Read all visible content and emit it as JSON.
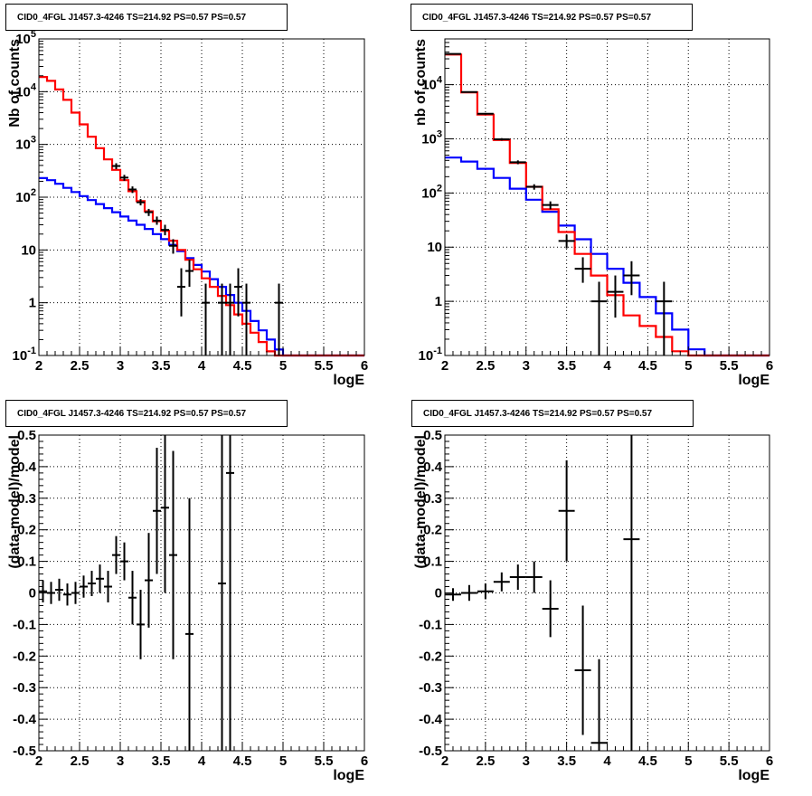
{
  "panels": [
    {
      "title": "CID0_4FGL J1457.3-4246 TS=214.92 PS=0.57 PS=0.57"
    },
    {
      "title": "CID0_4FGL J1457.3-4246 TS=214.92 PS=0.57 PS=0.57"
    },
    {
      "title": "CID0_4FGL J1457.3-4246 TS=214.92 PS=0.57 PS=0.57"
    },
    {
      "title": "CID0_4FGL J1457.3-4246 TS=214.92 PS=0.57 PS=0.57"
    }
  ],
  "colors": {
    "total_model": "#ff0000",
    "background_model": "#0000ff",
    "data": "#000000",
    "grid": "#000000"
  },
  "chart_data": [
    {
      "type": "line",
      "title": "CID0_4FGL J1457.3-4246 TS=214.92 PS=0.57 PS=0.57",
      "xlabel": "logE",
      "ylabel": "Nb of counts",
      "xlim": [
        2,
        6
      ],
      "ylim": [
        0.1,
        100000
      ],
      "yscale": "log",
      "grid": true,
      "x_ticks": [
        "2",
        "2.5",
        "3",
        "3.5",
        "4",
        "4.5",
        "5",
        "5.5",
        "6"
      ],
      "y_ticks": [
        "10^-1",
        "1",
        "10",
        "10^2",
        "10^3",
        "10^4",
        "10^5"
      ],
      "bin_width": 0.1,
      "bin_low_edges": [
        2.0,
        2.1,
        2.2,
        2.3,
        2.4,
        2.5,
        2.6,
        2.7,
        2.8,
        2.9,
        3.0,
        3.1,
        3.2,
        3.3,
        3.4,
        3.5,
        3.6,
        3.7,
        3.8,
        3.9,
        4.0,
        4.1,
        4.2,
        4.3,
        4.4,
        4.5,
        4.6,
        4.7,
        4.8,
        4.9,
        5.0,
        5.1,
        5.2,
        5.3,
        5.4,
        5.5,
        5.6,
        5.7,
        5.8,
        5.9
      ],
      "series": [
        {
          "values": [
            19000,
            16000,
            11000,
            7000,
            4000,
            2400,
            1400,
            850,
            520,
            330,
            210,
            130,
            84,
            54,
            35,
            23,
            15,
            10,
            6.5,
            4.3,
            2.9,
            2.0,
            1.35,
            0.9,
            0.6,
            0.4,
            0.27,
            0.18,
            0.12,
            0.1,
            0.1,
            0.1,
            0.1,
            0.1,
            0.1,
            0.1,
            0.1,
            0.1,
            0.1,
            0.1
          ]
        },
        {
          "values": [
            230,
            210,
            180,
            150,
            125,
            105,
            88,
            74,
            62,
            52,
            43,
            36,
            30,
            25,
            20,
            16,
            12.5,
            9.5,
            7,
            5.2,
            3.9,
            2.8,
            2.0,
            1.4,
            1.0,
            0.7,
            0.45,
            0.3,
            0.2,
            0.13,
            0.1,
            0.1,
            0.1,
            0.1,
            0.1,
            0.1,
            0.1,
            0.1,
            0.1,
            0.1
          ]
        }
      ],
      "data_points": [
        {
          "x": 2.95,
          "y": 390,
          "lo": 340,
          "hi": 440
        },
        {
          "x": 3.05,
          "y": 235,
          "lo": 205,
          "hi": 265
        },
        {
          "x": 3.15,
          "y": 140,
          "lo": 120,
          "hi": 160
        },
        {
          "x": 3.25,
          "y": 80,
          "lo": 70,
          "hi": 92
        },
        {
          "x": 3.35,
          "y": 52,
          "lo": 44,
          "hi": 60
        },
        {
          "x": 3.45,
          "y": 36,
          "lo": 30,
          "hi": 43
        },
        {
          "x": 3.55,
          "y": 24,
          "lo": 19,
          "hi": 30
        },
        {
          "x": 3.65,
          "y": 12,
          "lo": 8.5,
          "hi": 16
        },
        {
          "x": 3.75,
          "y": 2.0,
          "lo": 0.55,
          "hi": 4.5
        },
        {
          "x": 3.85,
          "y": 4.0,
          "lo": 2.0,
          "hi": 6.5
        },
        {
          "x": 4.05,
          "y": 1.0,
          "lo": 0.1,
          "hi": 2.3
        },
        {
          "x": 4.25,
          "y": 1.0,
          "lo": 0.1,
          "hi": 2.3
        },
        {
          "x": 4.35,
          "y": 1.0,
          "lo": 0.1,
          "hi": 2.3
        },
        {
          "x": 4.45,
          "y": 2.0,
          "lo": 0.55,
          "hi": 4.5
        },
        {
          "x": 4.55,
          "y": 1.0,
          "lo": 0.1,
          "hi": 2.3
        },
        {
          "x": 4.95,
          "y": 1.0,
          "lo": 0.1,
          "hi": 2.3
        }
      ]
    },
    {
      "type": "line",
      "title": "CID0_4FGL J1457.3-4246 TS=214.92 PS=0.57 PS=0.57",
      "xlabel": "logE",
      "ylabel": "nb of counts",
      "xlim": [
        2,
        6
      ],
      "ylim": [
        0.1,
        70000
      ],
      "yscale": "log",
      "grid": true,
      "x_ticks": [
        "2",
        "2.5",
        "3",
        "3.5",
        "4",
        "4.5",
        "5",
        "5.5",
        "6"
      ],
      "y_ticks": [
        "10^-1",
        "1",
        "10",
        "10^2",
        "10^3",
        "10^4"
      ],
      "bin_width": 0.2,
      "bin_low_edges": [
        2.0,
        2.2,
        2.4,
        2.6,
        2.8,
        3.0,
        3.2,
        3.4,
        3.6,
        3.8,
        4.0,
        4.2,
        4.4,
        4.6,
        4.8,
        5.0,
        5.2,
        5.4,
        5.6,
        5.8
      ],
      "series": [
        {
          "values": [
            36000,
            7200,
            2800,
            950,
            360,
            130,
            50,
            19,
            7.5,
            3.0,
            1.3,
            0.55,
            0.35,
            0.22,
            0.12,
            0.1,
            0.1,
            0.1,
            0.1,
            0.1
          ]
        },
        {
          "values": [
            450,
            380,
            280,
            190,
            120,
            75,
            45,
            25,
            14,
            7.5,
            4.0,
            2.2,
            1.2,
            0.6,
            0.3,
            0.13,
            0.1,
            0.1,
            0.1,
            0.1
          ]
        }
      ],
      "data_points": [
        {
          "x": 2.1,
          "y": 37000,
          "lo": 36500,
          "hi": 37500
        },
        {
          "x": 2.3,
          "y": 7300,
          "lo": 7100,
          "hi": 7500
        },
        {
          "x": 2.5,
          "y": 2900,
          "lo": 2800,
          "hi": 3000
        },
        {
          "x": 2.7,
          "y": 980,
          "lo": 930,
          "hi": 1030
        },
        {
          "x": 2.9,
          "y": 370,
          "lo": 340,
          "hi": 400
        },
        {
          "x": 3.1,
          "y": 130,
          "lo": 115,
          "hi": 145
        },
        {
          "x": 3.3,
          "y": 60,
          "lo": 50,
          "hi": 70
        },
        {
          "x": 3.5,
          "y": 13,
          "lo": 9.5,
          "hi": 17
        },
        {
          "x": 3.7,
          "y": 4.0,
          "lo": 2.2,
          "hi": 6.5
        },
        {
          "x": 3.9,
          "y": 1.0,
          "lo": 0.1,
          "hi": 2.3
        },
        {
          "x": 4.1,
          "y": 1.5,
          "lo": 0.5,
          "hi": 3.0
        },
        {
          "x": 4.3,
          "y": 3.0,
          "lo": 1.3,
          "hi": 5.5
        },
        {
          "x": 4.7,
          "y": 1.0,
          "lo": 0.1,
          "hi": 2.3
        }
      ]
    },
    {
      "type": "scatter",
      "title": "CID0_4FGL J1457.3-4246 TS=214.92 PS=0.57 PS=0.57",
      "xlabel": "logE",
      "ylabel": "(data-model)/model",
      "xlim": [
        2,
        6
      ],
      "ylim": [
        -0.5,
        0.5
      ],
      "grid": true,
      "x_ticks": [
        "2",
        "2.5",
        "3",
        "3.5",
        "4",
        "4.5",
        "5",
        "5.5",
        "6"
      ],
      "y_ticks": [
        "-0.5",
        "-0.4",
        "-0.3",
        "-0.2",
        "-0.1",
        "0",
        "0.1",
        "0.2",
        "0.3",
        "0.4",
        "0.5"
      ],
      "bin_width": 0.1,
      "data_points": [
        {
          "x": 2.05,
          "y": 0.005,
          "lo": -0.03,
          "hi": 0.04
        },
        {
          "x": 2.15,
          "y": 0.0,
          "lo": -0.035,
          "hi": 0.035
        },
        {
          "x": 2.25,
          "y": 0.01,
          "lo": -0.025,
          "hi": 0.045
        },
        {
          "x": 2.35,
          "y": -0.005,
          "lo": -0.04,
          "hi": 0.03
        },
        {
          "x": 2.45,
          "y": 0.0,
          "lo": -0.035,
          "hi": 0.035
        },
        {
          "x": 2.55,
          "y": 0.02,
          "lo": -0.015,
          "hi": 0.055
        },
        {
          "x": 2.65,
          "y": 0.03,
          "lo": -0.01,
          "hi": 0.07
        },
        {
          "x": 2.75,
          "y": 0.045,
          "lo": 0.0,
          "hi": 0.09
        },
        {
          "x": 2.85,
          "y": 0.02,
          "lo": -0.03,
          "hi": 0.07
        },
        {
          "x": 2.95,
          "y": 0.12,
          "lo": 0.06,
          "hi": 0.18
        },
        {
          "x": 3.05,
          "y": 0.1,
          "lo": 0.04,
          "hi": 0.16
        },
        {
          "x": 3.15,
          "y": -0.015,
          "lo": -0.1,
          "hi": 0.07
        },
        {
          "x": 3.25,
          "y": -0.1,
          "lo": -0.21,
          "hi": 0.01
        },
        {
          "x": 3.35,
          "y": 0.04,
          "lo": -0.11,
          "hi": 0.19
        },
        {
          "x": 3.45,
          "y": 0.26,
          "lo": 0.06,
          "hi": 0.46
        },
        {
          "x": 3.55,
          "y": 0.27,
          "lo": 0.0,
          "hi": 0.5
        },
        {
          "x": 3.65,
          "y": 0.12,
          "lo": -0.21,
          "hi": 0.45
        },
        {
          "x": 3.85,
          "y": -0.13,
          "lo": -0.5,
          "hi": 0.3
        },
        {
          "x": 4.25,
          "y": 0.03,
          "lo": -0.5,
          "hi": 0.5
        },
        {
          "x": 4.35,
          "y": 0.38,
          "lo": -0.5,
          "hi": 0.5
        }
      ]
    },
    {
      "type": "scatter",
      "title": "CID0_4FGL J1457.3-4246 TS=214.92 PS=0.57 PS=0.57",
      "xlabel": "logE",
      "ylabel": "(data-model)/model",
      "xlim": [
        2,
        6
      ],
      "ylim": [
        -0.5,
        0.5
      ],
      "grid": true,
      "x_ticks": [
        "2",
        "2.5",
        "3",
        "3.5",
        "4",
        "4.5",
        "5",
        "5.5",
        "6"
      ],
      "y_ticks": [
        "-0.5",
        "-0.4",
        "-0.3",
        "-0.2",
        "-0.1",
        "0",
        "0.1",
        "0.2",
        "0.3",
        "0.4",
        "0.5"
      ],
      "bin_width": 0.2,
      "data_points": [
        {
          "x": 2.1,
          "y": -0.005,
          "lo": -0.025,
          "hi": 0.015
        },
        {
          "x": 2.3,
          "y": 0.0,
          "lo": -0.025,
          "hi": 0.025
        },
        {
          "x": 2.5,
          "y": 0.005,
          "lo": -0.02,
          "hi": 0.03
        },
        {
          "x": 2.7,
          "y": 0.035,
          "lo": 0.005,
          "hi": 0.065
        },
        {
          "x": 2.9,
          "y": 0.05,
          "lo": 0.01,
          "hi": 0.09
        },
        {
          "x": 3.1,
          "y": 0.05,
          "lo": 0.0,
          "hi": 0.1
        },
        {
          "x": 3.3,
          "y": -0.05,
          "lo": -0.14,
          "hi": 0.04
        },
        {
          "x": 3.5,
          "y": 0.26,
          "lo": 0.1,
          "hi": 0.42
        },
        {
          "x": 3.7,
          "y": -0.245,
          "lo": -0.45,
          "hi": -0.04
        },
        {
          "x": 3.9,
          "y": -0.475,
          "lo": -0.5,
          "hi": -0.21
        },
        {
          "x": 4.3,
          "y": 0.17,
          "lo": -0.5,
          "hi": 0.5
        }
      ]
    }
  ]
}
